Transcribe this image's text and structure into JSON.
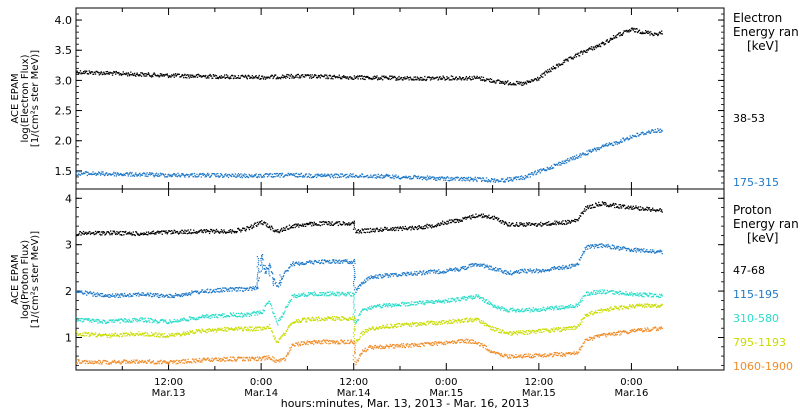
{
  "figure": {
    "xaxis_title": "hours:minutes, Mar. 13, 2013 - Mar. 16, 2013"
  },
  "chart_data": [
    {
      "type": "scatter",
      "id": "electron-panel",
      "ylabel_lines": [
        "ACE EPAM",
        "log(Electron Flux)",
        "[1/(cm²s ster MeV)]"
      ],
      "ylim": [
        1.2,
        4.2
      ],
      "yticks": [
        1.5,
        2.0,
        2.5,
        3.0,
        3.5,
        4.0
      ],
      "ytick_labels": [
        "1.5",
        "2.0",
        "2.5",
        "3.0",
        "3.5",
        "4.0"
      ],
      "legend": {
        "title_lines": [
          "Electron",
          "Energy ran",
          "[keV]"
        ],
        "placement": "right"
      },
      "xlim_hours": [
        0,
        84
      ],
      "series": [
        {
          "name": "38-53",
          "color": "#000000",
          "x_hours": [
            0,
            4,
            8,
            12,
            16,
            20,
            24,
            28,
            32,
            36,
            40,
            44,
            48,
            52,
            55,
            58,
            60,
            61,
            63,
            66,
            68,
            70,
            72,
            74,
            75,
            76
          ],
          "values": [
            3.15,
            3.13,
            3.11,
            3.09,
            3.08,
            3.07,
            3.06,
            3.08,
            3.07,
            3.06,
            3.05,
            3.04,
            3.05,
            3.05,
            2.98,
            2.95,
            3.05,
            3.15,
            3.3,
            3.5,
            3.6,
            3.75,
            3.85,
            3.8,
            3.78,
            3.8
          ]
        },
        {
          "name": "175-315",
          "color": "#1e78c8",
          "x_hours": [
            0,
            4,
            8,
            12,
            16,
            20,
            24,
            28,
            32,
            36,
            40,
            44,
            48,
            52,
            55,
            58,
            61,
            64,
            66,
            68,
            70,
            72,
            74,
            75,
            76
          ],
          "values": [
            1.47,
            1.46,
            1.45,
            1.44,
            1.44,
            1.43,
            1.43,
            1.44,
            1.43,
            1.43,
            1.42,
            1.4,
            1.38,
            1.37,
            1.35,
            1.4,
            1.55,
            1.7,
            1.8,
            1.9,
            1.98,
            2.08,
            2.15,
            2.18,
            2.17
          ]
        }
      ]
    },
    {
      "type": "scatter",
      "id": "proton-panel",
      "ylabel_lines": [
        "ACE EPAM",
        "log(Proton Flux)",
        "[1/(cm²s ster MeV)]"
      ],
      "ylim": [
        0.3,
        4.2
      ],
      "yticks": [
        1,
        2,
        3,
        4
      ],
      "ytick_labels": [
        "1",
        "2",
        "3",
        "4"
      ],
      "legend": {
        "title_lines": [
          "Proton",
          "Energy ran",
          "[keV]"
        ],
        "placement": "right"
      },
      "xlim_hours": [
        0,
        84
      ],
      "xticks": [
        {
          "hour": 12,
          "time": "12:00",
          "date": "Mar.13"
        },
        {
          "hour": 24,
          "time": "0:00",
          "date": "Mar.14"
        },
        {
          "hour": 36,
          "time": "12:00",
          "date": "Mar.14"
        },
        {
          "hour": 48,
          "time": "0:00",
          "date": "Mar.15"
        },
        {
          "hour": 60,
          "time": "12:00",
          "date": "Mar.15"
        },
        {
          "hour": 72,
          "time": "0:00",
          "date": "Mar.16"
        }
      ],
      "series": [
        {
          "name": "47-68",
          "color": "#000000",
          "x_hours": [
            0,
            4,
            8,
            12,
            16,
            20,
            22,
            24,
            25,
            26,
            27,
            28,
            30,
            32,
            34,
            36,
            36.2,
            38,
            40,
            44,
            46,
            48,
            50,
            52,
            54,
            56,
            58,
            60,
            62,
            64,
            65,
            66,
            68,
            70,
            72,
            73,
            74,
            75,
            76
          ],
          "values": [
            3.25,
            3.27,
            3.25,
            3.28,
            3.3,
            3.3,
            3.35,
            3.5,
            3.4,
            3.3,
            3.35,
            3.42,
            3.45,
            3.47,
            3.47,
            3.48,
            3.3,
            3.32,
            3.35,
            3.38,
            3.42,
            3.5,
            3.55,
            3.65,
            3.6,
            3.45,
            3.45,
            3.45,
            3.48,
            3.5,
            3.55,
            3.8,
            3.9,
            3.85,
            3.82,
            3.8,
            3.78,
            3.77,
            3.75
          ]
        },
        {
          "name": "115-195",
          "color": "#1e78c8",
          "x_hours": [
            0,
            4,
            8,
            12,
            16,
            20,
            22,
            23.5,
            24,
            24.5,
            25,
            25.5,
            26,
            26.5,
            27,
            28,
            30,
            32,
            34,
            36,
            36.2,
            37,
            38,
            40,
            44,
            48,
            50,
            52,
            54,
            56,
            58,
            60,
            62,
            64,
            65,
            66,
            68,
            70,
            72,
            74,
            75,
            76
          ],
          "values": [
            2.0,
            1.9,
            1.95,
            1.9,
            2.0,
            2.05,
            2.05,
            2.1,
            2.8,
            2.4,
            2.6,
            2.3,
            2.1,
            2.2,
            2.4,
            2.6,
            2.63,
            2.65,
            2.65,
            2.65,
            2.0,
            2.2,
            2.3,
            2.35,
            2.4,
            2.45,
            2.5,
            2.6,
            2.5,
            2.4,
            2.45,
            2.45,
            2.5,
            2.55,
            2.6,
            2.95,
            3.0,
            2.95,
            2.9,
            2.88,
            2.86,
            2.85
          ]
        },
        {
          "name": "310-580",
          "color": "#28dcc8",
          "x_hours": [
            0,
            4,
            8,
            12,
            16,
            20,
            22,
            24,
            25,
            26,
            27,
            28,
            30,
            32,
            34,
            36,
            36.2,
            37,
            38,
            40,
            44,
            48,
            50,
            52,
            54,
            56,
            58,
            60,
            62,
            64,
            65,
            66,
            68,
            70,
            72,
            74,
            75,
            76
          ],
          "values": [
            1.4,
            1.35,
            1.4,
            1.35,
            1.45,
            1.5,
            1.5,
            1.55,
            1.8,
            1.3,
            1.6,
            1.9,
            1.95,
            1.95,
            1.95,
            1.95,
            1.3,
            1.6,
            1.65,
            1.7,
            1.75,
            1.8,
            1.85,
            1.9,
            1.7,
            1.6,
            1.6,
            1.62,
            1.65,
            1.68,
            1.7,
            1.95,
            2.0,
            1.98,
            1.95,
            1.93,
            1.92,
            1.9
          ]
        },
        {
          "name": "795-1193",
          "color": "#c8dc00",
          "x_hours": [
            0,
            4,
            8,
            12,
            16,
            20,
            22,
            24,
            25,
            26,
            27,
            28,
            30,
            32,
            34,
            36,
            36.2,
            37,
            38,
            40,
            44,
            48,
            50,
            52,
            54,
            56,
            58,
            60,
            62,
            64,
            65,
            66,
            68,
            70,
            72,
            74,
            75,
            76
          ],
          "values": [
            1.1,
            1.05,
            1.1,
            1.05,
            1.15,
            1.2,
            1.2,
            1.2,
            1.25,
            0.9,
            1.1,
            1.35,
            1.4,
            1.42,
            1.42,
            1.42,
            0.9,
            1.1,
            1.2,
            1.25,
            1.3,
            1.35,
            1.38,
            1.4,
            1.2,
            1.1,
            1.12,
            1.15,
            1.18,
            1.2,
            1.25,
            1.5,
            1.6,
            1.65,
            1.68,
            1.7,
            1.7,
            1.7
          ]
        },
        {
          "name": "1060-1900",
          "color": "#f08c28",
          "x_hours": [
            0,
            4,
            8,
            12,
            16,
            20,
            22,
            24,
            25,
            26,
            27,
            28,
            30,
            32,
            34,
            36,
            36.2,
            37,
            38,
            40,
            44,
            48,
            50,
            52,
            54,
            56,
            58,
            60,
            62,
            64,
            65,
            66,
            68,
            70,
            72,
            74,
            75,
            76
          ],
          "values": [
            0.5,
            0.48,
            0.5,
            0.48,
            0.52,
            0.55,
            0.55,
            0.55,
            0.6,
            0.5,
            0.55,
            0.85,
            0.9,
            0.92,
            0.92,
            0.92,
            0.45,
            0.7,
            0.8,
            0.82,
            0.85,
            0.9,
            0.95,
            0.9,
            0.7,
            0.6,
            0.62,
            0.62,
            0.65,
            0.65,
            0.7,
            0.95,
            1.05,
            1.1,
            1.15,
            1.18,
            1.2,
            1.2
          ]
        }
      ]
    }
  ]
}
